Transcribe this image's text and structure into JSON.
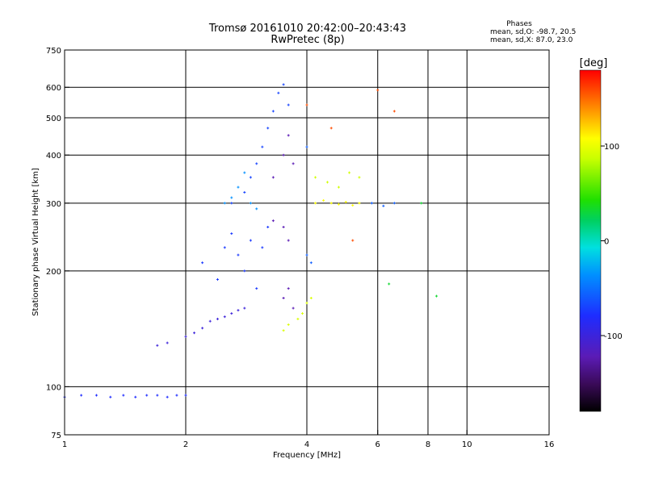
{
  "chart_data": {
    "type": "scatter",
    "title": "Tromsø 20161010 20:42:00–20:43:43",
    "subtitle": "RwPretec (8p)",
    "xlabel": "Frequency [MHz]",
    "ylabel": "Stationary phase Virtual Height [km]",
    "x_scale": "log",
    "y_scale": "log",
    "xlim": [
      1,
      16
    ],
    "ylim": [
      75,
      750
    ],
    "xticks": [
      1,
      2,
      4,
      6,
      8,
      10,
      16
    ],
    "xtick_labels": [
      "1",
      "2",
      "4",
      "6",
      "8",
      "10",
      "16"
    ],
    "yticks": [
      75,
      100,
      200,
      300,
      400,
      500,
      600,
      750
    ],
    "ytick_labels": [
      "75",
      "100",
      "200",
      "300",
      "400",
      "500",
      "600",
      "750"
    ],
    "grid": true,
    "grid_x": [
      2,
      4,
      6,
      8,
      10
    ],
    "grid_y": [
      100,
      200,
      300,
      400,
      500,
      600
    ],
    "phases": {
      "title": "Phases",
      "line1": "mean, sd,O: -98.7, 20.5",
      "line2": "mean, sd,X: 87.0, 23.0"
    },
    "colorbar": {
      "label": "[deg]",
      "range": [
        -180,
        180
      ],
      "ticks": [
        100,
        0,
        -100
      ],
      "tick_labels": [
        "100",
        "0",
        "-100"
      ]
    },
    "series": [
      {
        "phase": -100,
        "points": [
          [
            1.0,
            94
          ],
          [
            1.1,
            95
          ],
          [
            1.2,
            95
          ],
          [
            1.3,
            94
          ],
          [
            1.4,
            95
          ],
          [
            1.5,
            94
          ],
          [
            1.6,
            95
          ],
          [
            1.7,
            95
          ],
          [
            1.8,
            94
          ],
          [
            1.9,
            95
          ],
          [
            2.0,
            95
          ]
        ]
      },
      {
        "phase": -110,
        "points": [
          [
            1.7,
            128
          ],
          [
            1.8,
            130
          ],
          [
            2.0,
            135
          ],
          [
            2.1,
            138
          ],
          [
            2.2,
            142
          ],
          [
            2.3,
            148
          ],
          [
            2.4,
            150
          ],
          [
            2.5,
            152
          ],
          [
            2.6,
            155
          ],
          [
            2.7,
            158
          ],
          [
            2.8,
            160
          ]
        ]
      },
      {
        "phase": -95,
        "points": [
          [
            2.2,
            210
          ],
          [
            2.4,
            190
          ],
          [
            2.5,
            230
          ],
          [
            2.6,
            250
          ],
          [
            2.7,
            220
          ],
          [
            2.8,
            200
          ],
          [
            2.9,
            240
          ],
          [
            3.0,
            180
          ],
          [
            3.1,
            230
          ],
          [
            3.2,
            260
          ]
        ]
      },
      {
        "phase": -90,
        "points": [
          [
            2.6,
            300
          ],
          [
            2.8,
            320
          ],
          [
            2.9,
            350
          ],
          [
            3.0,
            380
          ],
          [
            3.1,
            420
          ],
          [
            3.2,
            470
          ],
          [
            3.3,
            520
          ],
          [
            3.4,
            580
          ],
          [
            3.5,
            610
          ],
          [
            3.6,
            540
          ]
        ]
      },
      {
        "phase": -60,
        "points": [
          [
            2.5,
            300
          ],
          [
            2.6,
            310
          ],
          [
            2.7,
            330
          ],
          [
            2.8,
            360
          ],
          [
            2.9,
            300
          ],
          [
            3.0,
            290
          ]
        ]
      },
      {
        "phase": -120,
        "points": [
          [
            3.3,
            350
          ],
          [
            3.5,
            400
          ],
          [
            3.6,
            450
          ],
          [
            3.7,
            380
          ],
          [
            3.3,
            270
          ],
          [
            3.5,
            260
          ],
          [
            3.6,
            240
          ],
          [
            3.5,
            170
          ],
          [
            3.6,
            180
          ],
          [
            3.7,
            160
          ]
        ]
      },
      {
        "phase": 90,
        "points": [
          [
            3.5,
            140
          ],
          [
            3.6,
            145
          ],
          [
            3.8,
            150
          ],
          [
            3.9,
            155
          ],
          [
            4.0,
            165
          ],
          [
            4.1,
            170
          ]
        ]
      },
      {
        "phase": 110,
        "points": [
          [
            4.2,
            300
          ],
          [
            4.4,
            305
          ],
          [
            4.6,
            300
          ],
          [
            4.8,
            298
          ],
          [
            5.0,
            302
          ],
          [
            5.2,
            296
          ],
          [
            5.4,
            300
          ]
        ]
      },
      {
        "phase": 85,
        "points": [
          [
            4.2,
            350
          ],
          [
            4.5,
            340
          ],
          [
            4.8,
            330
          ],
          [
            5.1,
            360
          ],
          [
            5.4,
            350
          ]
        ]
      },
      {
        "phase": -80,
        "points": [
          [
            5.8,
            300
          ],
          [
            6.2,
            295
          ],
          [
            6.6,
            300
          ],
          [
            4.0,
            420
          ],
          [
            4.1,
            210
          ],
          [
            4.0,
            220
          ]
        ]
      },
      {
        "phase": 160,
        "points": [
          [
            4.0,
            540
          ],
          [
            4.6,
            470
          ],
          [
            6.0,
            590
          ],
          [
            6.6,
            520
          ],
          [
            5.2,
            240
          ]
        ]
      },
      {
        "phase": 30,
        "points": [
          [
            8.4,
            172
          ],
          [
            6.4,
            185
          ],
          [
            7.7,
            300
          ]
        ]
      }
    ]
  }
}
